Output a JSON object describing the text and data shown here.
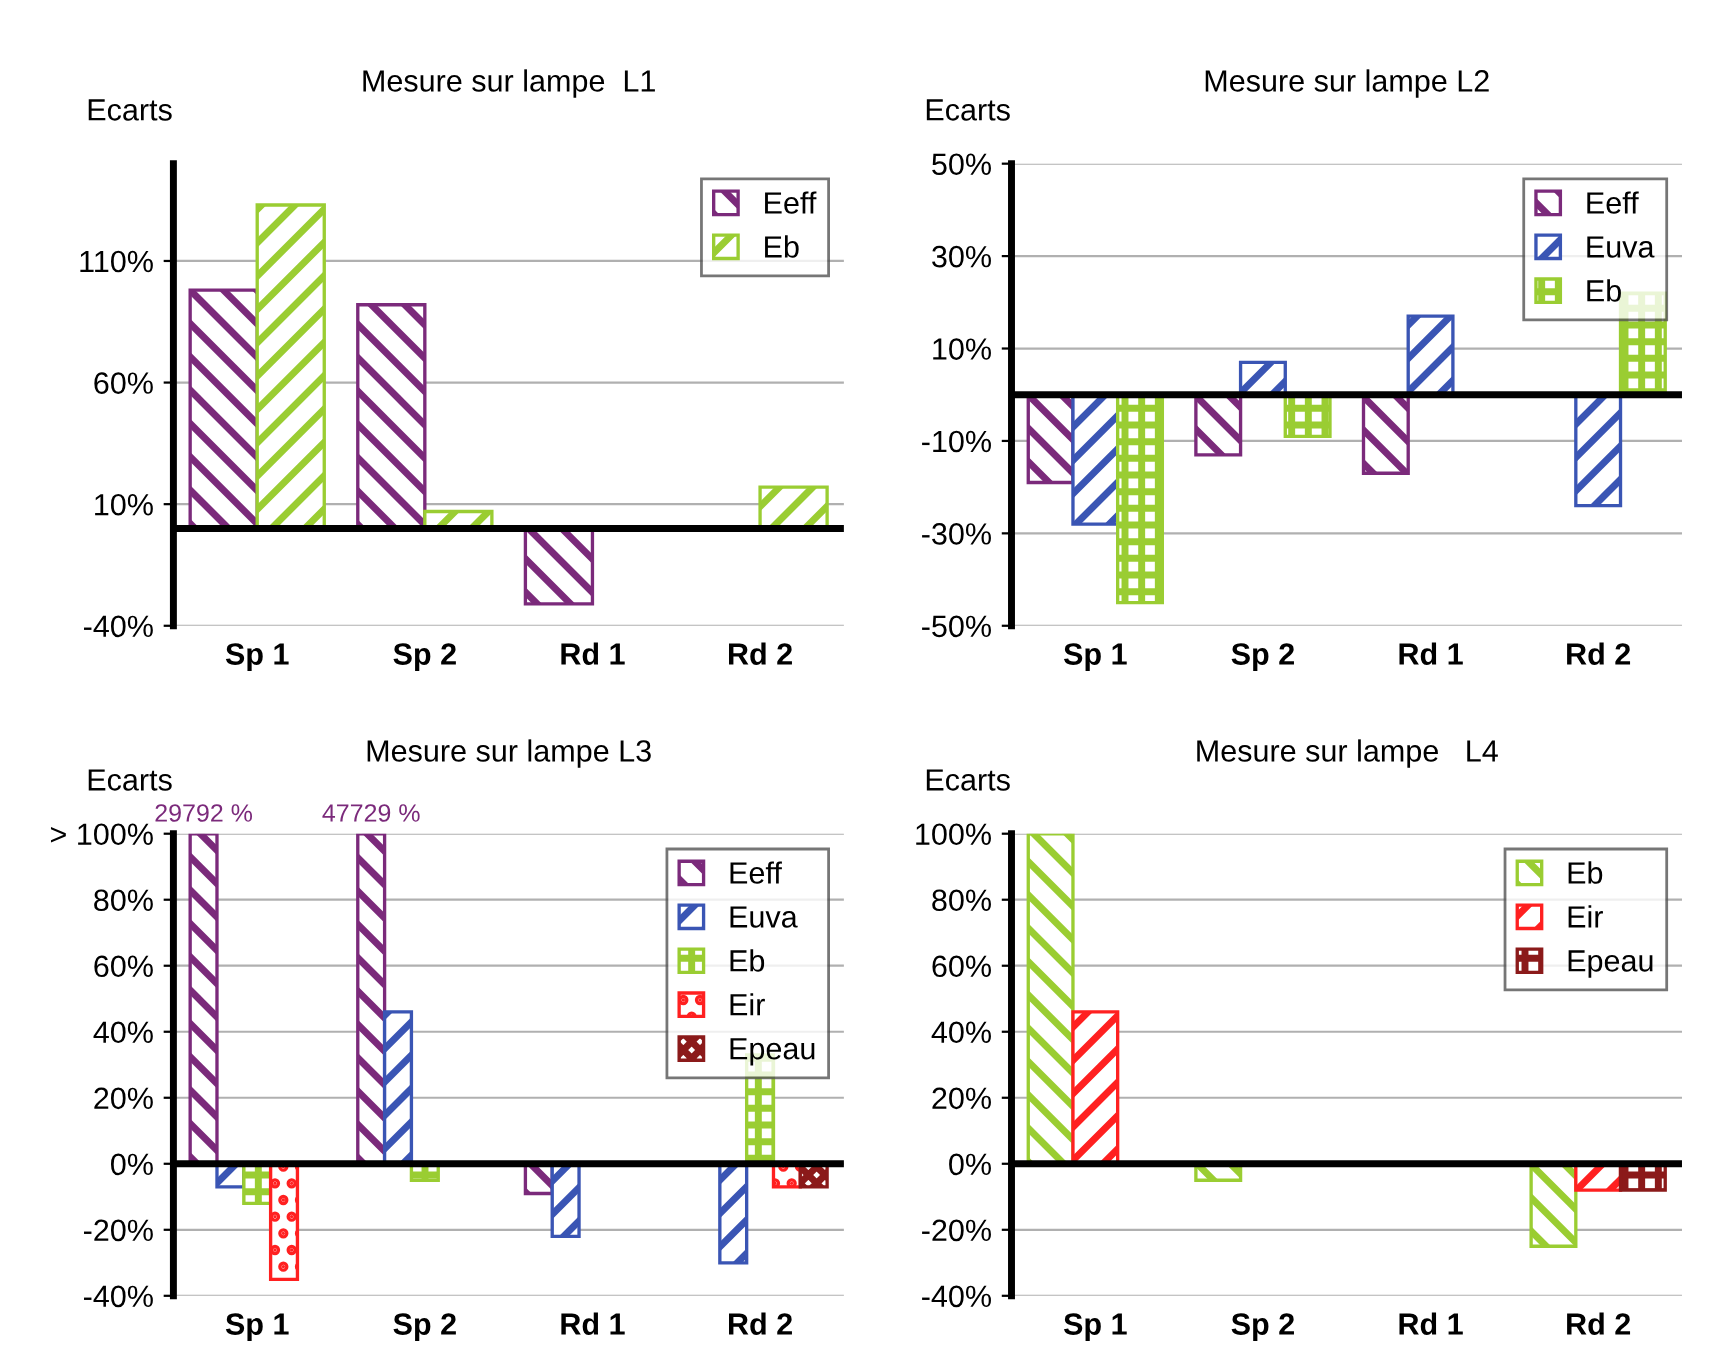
{
  "chart_data": [
    {
      "type": "bar",
      "title": "Mesure sur lampe  L1",
      "ylabel": "Ecarts",
      "categories": [
        "Sp 1",
        "Sp 2",
        "Rd 1",
        "Rd 2"
      ],
      "series": [
        {
          "name": "Eeff",
          "color": "#7b2a7b",
          "values": [
            98,
            92,
            -31,
            null
          ]
        },
        {
          "name": "Eb",
          "color": "#9acd32",
          "values": [
            133,
            7,
            null,
            17
          ]
        }
      ],
      "ylim": [
        -40,
        150
      ],
      "yticks": [
        {
          "value": -40,
          "label": "-40%"
        },
        {
          "value": 10,
          "label": "10%"
        },
        {
          "value": 60,
          "label": "60%"
        },
        {
          "value": 110,
          "label": "110%"
        }
      ],
      "grid": "y",
      "legend": "top right"
    },
    {
      "type": "bar",
      "title": "Mesure sur lampe L2",
      "ylabel": "Ecarts",
      "categories": [
        "Sp 1",
        "Sp 2",
        "Rd 1",
        "Rd 2"
      ],
      "series": [
        {
          "name": "Eeff",
          "color": "#7b2a7b",
          "values": [
            -19,
            -13,
            -17,
            null
          ]
        },
        {
          "name": "Euva",
          "color": "#3a55b4",
          "values": [
            -28,
            7,
            17,
            -24
          ]
        },
        {
          "name": "Eb",
          "color": "#9acd32",
          "values": [
            -45,
            -9,
            null,
            22
          ]
        }
      ],
      "ylim": [
        -50,
        50
      ],
      "yticks": [
        {
          "value": -50,
          "label": "-50%"
        },
        {
          "value": -30,
          "label": "-30%"
        },
        {
          "value": -10,
          "label": "-10%"
        },
        {
          "value": 10,
          "label": "10%"
        },
        {
          "value": 30,
          "label": "30%"
        },
        {
          "value": 50,
          "label": "50%"
        }
      ],
      "grid": "y",
      "legend": "top right"
    },
    {
      "type": "bar",
      "title": "Mesure sur lampe L3",
      "ylabel": "Ecarts",
      "categories": [
        "Sp 1",
        "Sp 2",
        "Rd 1",
        "Rd 2"
      ],
      "series": [
        {
          "name": "Eeff",
          "color": "#7b2a7b",
          "values": [
            100,
            100,
            -9,
            null
          ]
        },
        {
          "name": "Euva",
          "color": "#3a55b4",
          "values": [
            -7,
            46,
            -22,
            -30
          ]
        },
        {
          "name": "Eb",
          "color": "#9acd32",
          "values": [
            -12,
            -5,
            null,
            33
          ]
        },
        {
          "name": "Eir",
          "color": "#ff2020",
          "values": [
            -35,
            null,
            null,
            -7
          ]
        },
        {
          "name": "Epeau",
          "color": "#8b1a1a",
          "values": [
            null,
            null,
            null,
            -7
          ]
        }
      ],
      "annotations": [
        "29792 %",
        "47729 %"
      ],
      "ylim": [
        -40,
        100
      ],
      "yticks": [
        {
          "value": -40,
          "label": "-40%"
        },
        {
          "value": -20,
          "label": "-20%"
        },
        {
          "value": 0,
          "label": "0%"
        },
        {
          "value": 20,
          "label": "20%"
        },
        {
          "value": 40,
          "label": "40%"
        },
        {
          "value": 60,
          "label": "60%"
        },
        {
          "value": 80,
          "label": "80%"
        },
        {
          "value": 100,
          "label": "> 100%"
        }
      ],
      "grid": "y",
      "legend": "top right"
    },
    {
      "type": "bar",
      "title": "Mesure sur lampe   L4",
      "ylabel": "Ecarts",
      "categories": [
        "Sp 1",
        "Sp 2",
        "Rd 1",
        "Rd 2"
      ],
      "series": [
        {
          "name": "Eb",
          "color": "#9acd32",
          "values": [
            100,
            -5,
            null,
            -25
          ]
        },
        {
          "name": "Eir",
          "color": "#ff2020",
          "values": [
            46,
            null,
            null,
            -8
          ]
        },
        {
          "name": "Epeau",
          "color": "#8b1a1a",
          "values": [
            null,
            null,
            null,
            -8
          ]
        }
      ],
      "ylim": [
        -40,
        100
      ],
      "yticks": [
        {
          "value": -40,
          "label": "-40%"
        },
        {
          "value": -20,
          "label": "-20%"
        },
        {
          "value": 0,
          "label": "0%"
        },
        {
          "value": 20,
          "label": "20%"
        },
        {
          "value": 40,
          "label": "40%"
        },
        {
          "value": 60,
          "label": "60%"
        },
        {
          "value": 80,
          "label": "80%"
        },
        {
          "value": 100,
          "label": "100%"
        }
      ],
      "grid": "y",
      "legend": "top right"
    }
  ]
}
